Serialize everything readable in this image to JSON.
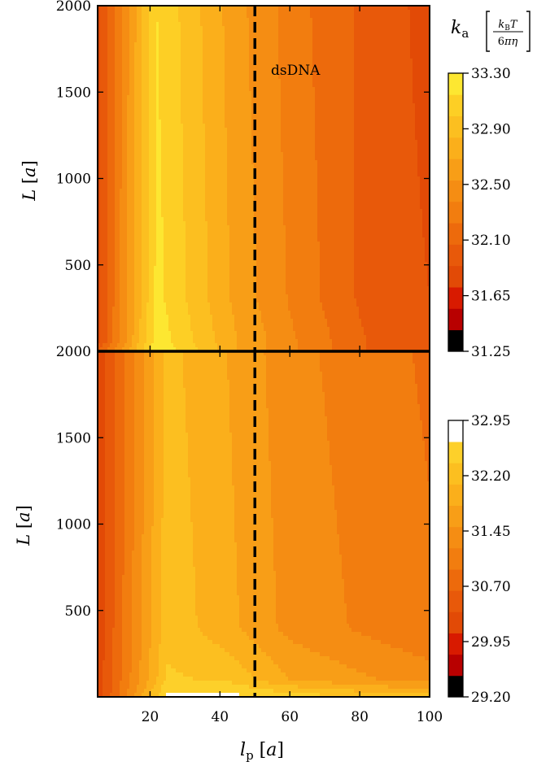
{
  "chart_data": [
    {
      "type": "heatmap",
      "subtype": "filled-contour",
      "xlabel": "l_p [a]",
      "ylabel": "L [a]",
      "xlim": [
        5,
        100
      ],
      "ylim": [
        0,
        2000
      ],
      "y_ticks": [
        500,
        1000,
        1500,
        2000
      ],
      "y_tick_labels": [
        "500",
        "1000",
        "1500",
        "2000"
      ],
      "annotation": "dsDNA",
      "reference_line": {
        "x": 50,
        "style": "dashed"
      },
      "colorbar": {
        "label": "k_a [k_B T / 6πη]",
        "ticks": [
          33.3,
          32.9,
          32.5,
          32.1,
          31.65,
          31.25
        ],
        "tick_labels": [
          "33.30",
          "32.90",
          "32.50",
          "32.10",
          "31.65",
          "31.25"
        ],
        "levels": [
          31.25,
          31.4,
          31.55,
          31.7,
          31.85,
          32.0,
          32.15,
          32.3,
          32.45,
          32.6,
          32.75,
          32.9,
          33.05,
          33.3
        ],
        "colors": [
          "#000000",
          "#b80000",
          "#d81a00",
          "#e24a06",
          "#e8590a",
          "#ed6a0c",
          "#f27d0f",
          "#f58d13",
          "#f89e17",
          "#fbaf1b",
          "#fcbf20",
          "#fdcf25",
          "#fde731"
        ]
      },
      "field_rows": [
        {
          "L": 0,
          "values": [
            32.0,
            33.2,
            32.6,
            32.3,
            32.0,
            31.9
          ]
        },
        {
          "L": 60,
          "values": [
            31.8,
            33.15,
            32.6,
            32.3,
            32.0,
            31.9
          ]
        },
        {
          "L": 300,
          "values": [
            31.8,
            33.1,
            32.55,
            32.25,
            31.95,
            31.85
          ]
        },
        {
          "L": 2000,
          "values": [
            31.8,
            33.05,
            32.5,
            32.2,
            31.95,
            31.8
          ]
        }
      ],
      "field_x": [
        5,
        22,
        45,
        62,
        82,
        100
      ]
    },
    {
      "type": "heatmap",
      "subtype": "filled-contour",
      "xlabel": "l_p [a]",
      "ylabel": "L [a]",
      "xlim": [
        5,
        100
      ],
      "ylim": [
        0,
        2000
      ],
      "x_ticks": [
        20,
        40,
        60,
        80,
        100
      ],
      "x_tick_labels": [
        "20",
        "40",
        "60",
        "80",
        "100"
      ],
      "y_ticks": [
        500,
        1000,
        1500,
        2000
      ],
      "y_tick_labels": [
        "500",
        "1000",
        "1500",
        "2000"
      ],
      "reference_line": {
        "x": 50,
        "style": "dashed"
      },
      "colorbar": {
        "ticks": [
          32.95,
          32.2,
          31.45,
          30.7,
          29.95,
          29.2
        ],
        "tick_labels": [
          "32.95",
          "32.20",
          "31.45",
          "30.70",
          "29.95",
          "29.20"
        ],
        "levels": [
          29.2,
          29.5,
          29.8,
          30.1,
          30.4,
          30.7,
          31.0,
          31.3,
          31.6,
          31.9,
          32.2,
          32.5,
          32.8,
          33.1
        ],
        "colors": [
          "#000000",
          "#b80000",
          "#d81a00",
          "#e24a06",
          "#e8590a",
          "#ed6a0c",
          "#f27d0f",
          "#f58d13",
          "#f89e17",
          "#fbaf1b",
          "#fcbf20",
          "#fdd02a",
          "#ffffff"
        ]
      },
      "field_rows": [
        {
          "L": 0,
          "values": [
            30.2,
            32.9,
            32.9,
            32.7,
            32.4,
            32.3
          ]
        },
        {
          "L": 100,
          "values": [
            30.2,
            32.55,
            32.45,
            31.9,
            31.6,
            31.45
          ]
        },
        {
          "L": 400,
          "values": [
            30.2,
            32.4,
            32.0,
            31.5,
            31.2,
            31.05
          ]
        },
        {
          "L": 2000,
          "values": [
            30.2,
            32.3,
            31.9,
            31.4,
            31.1,
            30.95
          ]
        }
      ],
      "field_x": [
        5,
        25,
        42,
        60,
        85,
        100
      ]
    }
  ]
}
